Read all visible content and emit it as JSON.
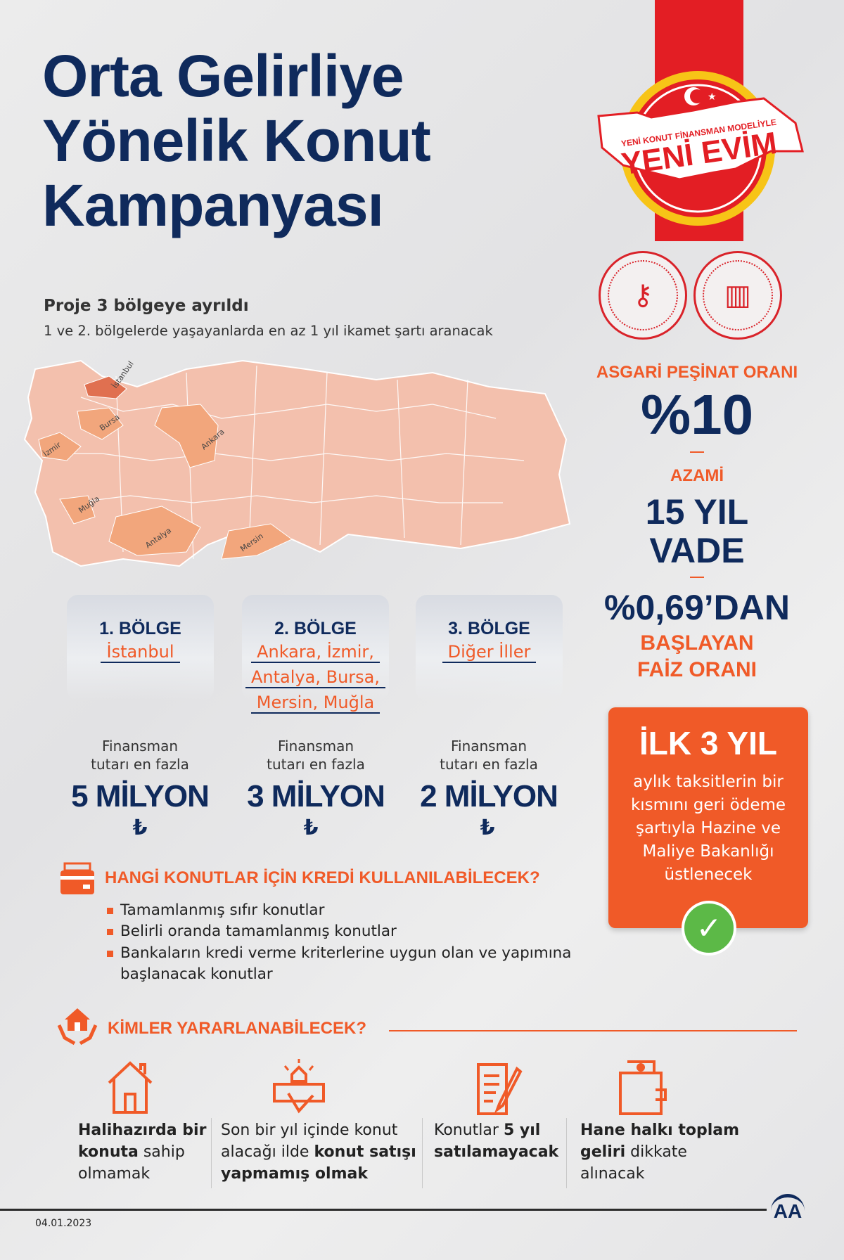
{
  "title": [
    "Orta Gelirliye",
    "Yönelik Konut",
    "Kampanyası"
  ],
  "stamp": {
    "small": "YENİ KONUT FİNANSMAN MODELİYLE",
    "big": "YENİ EVİM"
  },
  "subtitle": "Proje 3 bölgeye ayrıldı",
  "subtitle2": "1 ve 2. bölgelerde yaşayanlarda en az 1 yıl ikamet şartı aranacak",
  "map_labels": [
    "İstanbul",
    "Bursa",
    "Ankara",
    "İzmir",
    "Muğla",
    "Antalya",
    "Mersin"
  ],
  "colors": {
    "navy": "#0f2a5c",
    "orange": "#f05a28",
    "red": "#e31e24",
    "map_zone1": "#e07050",
    "map_zone2": "#f2a67c",
    "map_zone3": "#f3c0ad"
  },
  "regions": [
    {
      "name": "1. BÖLGE",
      "cities": [
        "İstanbul"
      ],
      "fin": [
        "Finansman",
        "tutarı en fazla"
      ],
      "amount": "5 MİLYON",
      "currency": "₺"
    },
    {
      "name": "2. BÖLGE",
      "cities": [
        "Ankara, İzmir,",
        "Antalya, Bursa,",
        "Mersin, Muğla"
      ],
      "fin": [
        "Finansman",
        "tutarı en fazla"
      ],
      "amount": "3 MİLYON",
      "currency": "₺"
    },
    {
      "name": "3. BÖLGE",
      "cities": [
        "Diğer İller"
      ],
      "fin": [
        "Finansman",
        "tutarı en fazla"
      ],
      "amount": "2 MİLYON",
      "currency": "₺"
    }
  ],
  "stats": {
    "pesinat_label": "ASGARİ PEŞİNAT ORANI",
    "pesinat": "%10",
    "azami": "AZAMİ",
    "vade1": "15 YIL",
    "vade2": "VADE",
    "faiz": "%0,69’DAN",
    "faiz_l1": "BAŞLAYAN",
    "faiz_l2": "FAİZ ORANI"
  },
  "ilk": {
    "heading": "İLK 3 YIL",
    "text": "aylık taksitlerin bir kısmını geri ödeme şartıyla Hazine ve Maliye Bakanlığı üstlenecek"
  },
  "hangi": {
    "heading": "HANGİ KONUTLAR İÇİN KREDİ KULLANILABİLECEK?",
    "items": [
      "Tamamlanmış sıfır konutlar",
      "Belirli oranda tamamlanmış konutlar",
      "Bankaların kredi verme kriterlerine uygun olan ve yapımına",
      "başlanacak konutlar"
    ]
  },
  "kimler": {
    "heading": "KİMLER YARARLANABİLECEK?",
    "items": [
      {
        "icon": "house-icon",
        "parts": [
          [
            "b",
            "Halihazırda bir konuta"
          ],
          [
            "n",
            " sahip olmamak"
          ]
        ]
      },
      {
        "icon": "handshake-icon",
        "parts": [
          [
            "n",
            "Son bir yıl içinde konut alacağı ilde "
          ],
          [
            "b",
            "konut satışı yapmamış olmak"
          ]
        ]
      },
      {
        "icon": "contract-icon",
        "parts": [
          [
            "n",
            "Konutlar "
          ],
          [
            "b",
            "5 yıl satılamayacak"
          ]
        ]
      },
      {
        "icon": "wallet-icon",
        "parts": [
          [
            "b",
            "Hane halkı toplam geliri"
          ],
          [
            "n",
            " dikkate alınacak"
          ]
        ]
      }
    ]
  },
  "footer": {
    "date": "04.01.2023",
    "logo": "AA"
  }
}
